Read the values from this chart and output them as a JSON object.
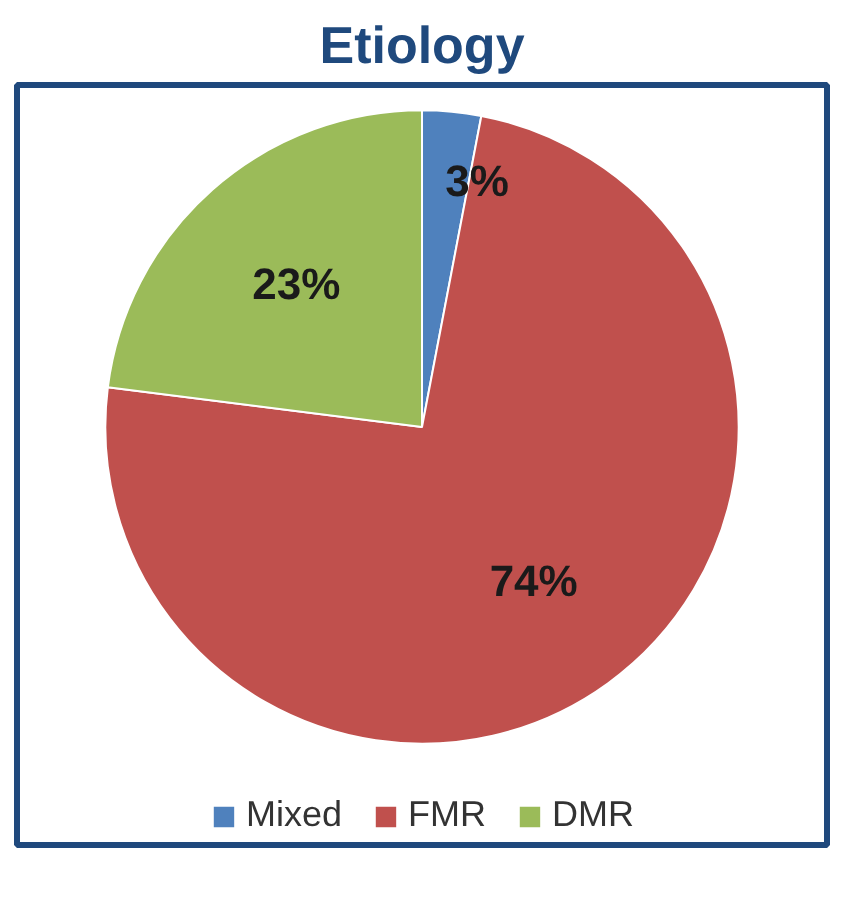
{
  "chart_data": {
    "type": "pie",
    "title": "Etiology",
    "categories": [
      "Mixed",
      "FMR",
      "DMR"
    ],
    "values": [
      3,
      74,
      23
    ],
    "colors": [
      "#4f81bd",
      "#c0504d",
      "#9bbb59"
    ],
    "value_labels": [
      "3%",
      "74%",
      "23%"
    ],
    "legend": "bottom"
  }
}
